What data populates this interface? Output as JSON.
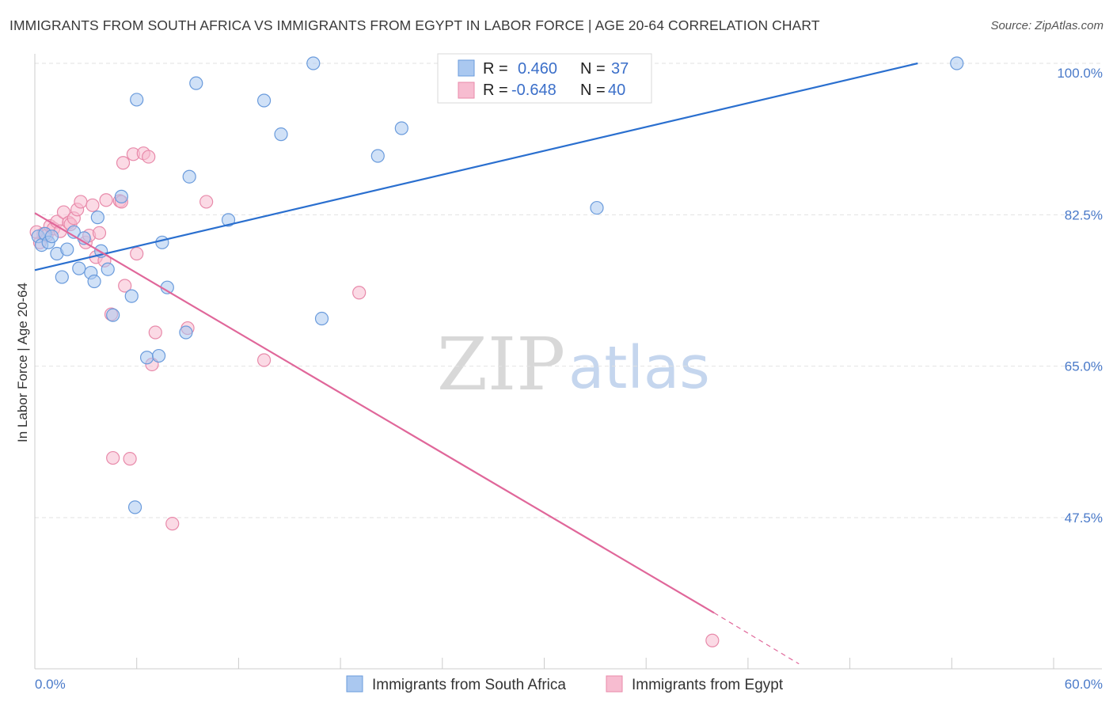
{
  "title": "IMMIGRANTS FROM SOUTH AFRICA VS IMMIGRANTS FROM EGYPT IN LABOR FORCE | AGE 20-64 CORRELATION CHART",
  "source": "Source: ZipAtlas.com",
  "watermark": {
    "zip": "ZIP",
    "atlas": "atlas"
  },
  "colors": {
    "blue_fill": "#aac8f0",
    "blue_stroke": "#6a9bdc",
    "blue_line": "#2a6fcf",
    "pink_fill": "#f7bcd0",
    "pink_stroke": "#e88aaa",
    "pink_line": "#e0679a",
    "grid": "#e2e2e2",
    "axis_text": "#4a7ac9"
  },
  "legend": {
    "rows": [
      {
        "r_label": "R =",
        "r_value": "0.460",
        "n_label": "N =",
        "n_value": "37"
      },
      {
        "r_label": "R =",
        "r_value": "-0.648",
        "n_label": "N =",
        "n_value": "40"
      }
    ]
  },
  "chart_data": {
    "type": "scatter",
    "title": "IMMIGRANTS FROM SOUTH AFRICA VS IMMIGRANTS FROM EGYPT IN LABOR FORCE | AGE 20-64 CORRELATION CHART",
    "xlabel": "",
    "ylabel": "In Labor Force | Age 20-64",
    "xlim": [
      0,
      60
    ],
    "ylim": [
      32,
      101.5
    ],
    "x_tick_labels": [
      "0.0%",
      "60.0%"
    ],
    "y_ticks": [
      47.5,
      65.0,
      82.5,
      100.0
    ],
    "y_tick_labels": [
      "47.5%",
      "65.0%",
      "82.5%",
      "100.0%"
    ],
    "grid": true,
    "legend_position": "top-center",
    "series": [
      {
        "name": "Immigrants from South Africa",
        "color": "#aac8f0",
        "points": [
          [
            0.2,
            80.0
          ],
          [
            0.4,
            79.0
          ],
          [
            0.6,
            80.3
          ],
          [
            0.8,
            79.3
          ],
          [
            1.0,
            80.0
          ],
          [
            1.3,
            78.0
          ],
          [
            1.6,
            75.3
          ],
          [
            1.9,
            78.5
          ],
          [
            2.3,
            80.5
          ],
          [
            2.6,
            76.3
          ],
          [
            2.9,
            79.8
          ],
          [
            3.3,
            75.8
          ],
          [
            3.5,
            74.8
          ],
          [
            3.7,
            82.2
          ],
          [
            3.9,
            78.3
          ],
          [
            4.3,
            76.2
          ],
          [
            4.6,
            70.9
          ],
          [
            5.1,
            84.6
          ],
          [
            5.7,
            73.1
          ],
          [
            6.0,
            95.8
          ],
          [
            5.9,
            48.7
          ],
          [
            6.6,
            66.0
          ],
          [
            7.3,
            66.2
          ],
          [
            7.5,
            79.3
          ],
          [
            7.8,
            74.1
          ],
          [
            8.9,
            68.9
          ],
          [
            9.1,
            86.9
          ],
          [
            9.5,
            97.7
          ],
          [
            11.4,
            81.9
          ],
          [
            13.5,
            95.7
          ],
          [
            14.5,
            91.8
          ],
          [
            16.4,
            100.0
          ],
          [
            16.9,
            70.5
          ],
          [
            20.2,
            89.3
          ],
          [
            21.6,
            92.5
          ],
          [
            33.1,
            83.3
          ],
          [
            54.3,
            100.0
          ]
        ]
      },
      {
        "name": "Immigrants from Egypt",
        "color": "#f7bcd0",
        "points": [
          [
            0.3,
            79.3
          ],
          [
            0.5,
            80.3
          ],
          [
            0.7,
            80.1
          ],
          [
            0.9,
            81.2
          ],
          [
            1.1,
            80.9
          ],
          [
            1.3,
            81.7
          ],
          [
            1.5,
            80.6
          ],
          [
            1.7,
            82.8
          ],
          [
            2.0,
            81.6
          ],
          [
            2.1,
            81.4
          ],
          [
            2.3,
            82.1
          ],
          [
            2.5,
            83.1
          ],
          [
            2.7,
            84.0
          ],
          [
            3.0,
            79.3
          ],
          [
            3.2,
            80.1
          ],
          [
            3.4,
            83.6
          ],
          [
            3.6,
            77.6
          ],
          [
            3.8,
            80.4
          ],
          [
            4.1,
            77.2
          ],
          [
            4.2,
            84.2
          ],
          [
            4.5,
            71.0
          ],
          [
            4.6,
            54.4
          ],
          [
            5.0,
            84.1
          ],
          [
            5.1,
            84.0
          ],
          [
            5.3,
            74.3
          ],
          [
            5.2,
            88.5
          ],
          [
            5.6,
            54.3
          ],
          [
            5.8,
            89.5
          ],
          [
            6.0,
            78.0
          ],
          [
            6.4,
            89.6
          ],
          [
            6.7,
            89.2
          ],
          [
            6.9,
            65.2
          ],
          [
            7.1,
            68.9
          ],
          [
            8.1,
            46.8
          ],
          [
            9.0,
            69.4
          ],
          [
            10.1,
            84.0
          ],
          [
            13.5,
            65.7
          ],
          [
            19.1,
            73.5
          ],
          [
            39.9,
            33.3
          ],
          [
            0.1,
            80.5
          ]
        ]
      }
    ],
    "trend_lines": [
      {
        "series": "Immigrants from South Africa",
        "x0": 0,
        "y0": 76.1,
        "x1": 52.0,
        "y1": 100.0,
        "dashed_to": null
      },
      {
        "series": "Immigrants from Egypt",
        "x0": 0,
        "y0": 82.7,
        "x1": 40.0,
        "y1": 36.5,
        "dashed_to": [
          45.0,
          30.6
        ]
      }
    ]
  },
  "bottom_legend": [
    {
      "label": "Immigrants from South Africa"
    },
    {
      "label": "Immigrants from Egypt"
    }
  ]
}
